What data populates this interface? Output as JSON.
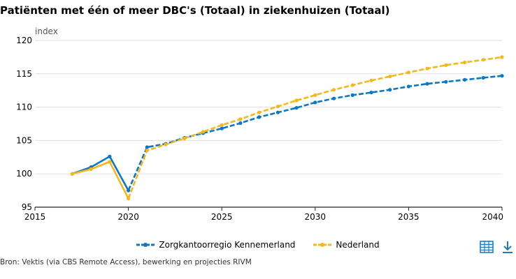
{
  "title": "Patiënten met één of meer DBC's (Totaal) in ziekenhuizen (Totaal)",
  "source": "Bron: Vektis (via CBS Remote Access), bewerking en projecties RIVM",
  "icons": {
    "table": "table-icon",
    "download": "download-icon"
  },
  "colors": {
    "series1": "#0a78c2",
    "series2": "#f5b81c",
    "grid": "#e0e0e0",
    "axis": "#222222",
    "icon": "#1f7cc1"
  },
  "chart_data": {
    "type": "line",
    "title": "",
    "xlabel": "",
    "ylabel": "index",
    "xlim": [
      2015,
      2040
    ],
    "ylim": [
      95,
      120
    ],
    "xticks": [
      2015,
      2020,
      2025,
      2030,
      2035,
      2040
    ],
    "yticks": [
      95,
      100,
      105,
      110,
      115,
      120
    ],
    "grid": true,
    "legend_position": "bottom",
    "series": [
      {
        "name": "Zorgkantoorregio Kennemerland",
        "color": "#0a78c2",
        "solid_until": 2021,
        "x": [
          2017,
          2018,
          2019,
          2020,
          2021,
          2022,
          2023,
          2024,
          2025,
          2026,
          2027,
          2028,
          2029,
          2030,
          2031,
          2032,
          2033,
          2034,
          2035,
          2036,
          2037,
          2038,
          2039,
          2040
        ],
        "y": [
          100.0,
          101.0,
          102.6,
          97.5,
          104.0,
          104.5,
          105.4,
          106.1,
          106.8,
          107.6,
          108.5,
          109.2,
          109.9,
          110.7,
          111.3,
          111.8,
          112.2,
          112.6,
          113.1,
          113.5,
          113.8,
          114.1,
          114.4,
          114.7
        ]
      },
      {
        "name": "Nederland",
        "color": "#f5b81c",
        "solid_until": 2021,
        "x": [
          2017,
          2018,
          2019,
          2020,
          2021,
          2022,
          2023,
          2024,
          2025,
          2026,
          2027,
          2028,
          2029,
          2030,
          2031,
          2032,
          2033,
          2034,
          2035,
          2036,
          2037,
          2038,
          2039,
          2040
        ],
        "y": [
          100.0,
          100.7,
          101.8,
          96.3,
          103.5,
          104.4,
          105.3,
          106.3,
          107.3,
          108.2,
          109.2,
          110.1,
          111.0,
          111.8,
          112.6,
          113.3,
          114.0,
          114.6,
          115.2,
          115.8,
          116.3,
          116.7,
          117.1,
          117.5
        ]
      }
    ]
  }
}
